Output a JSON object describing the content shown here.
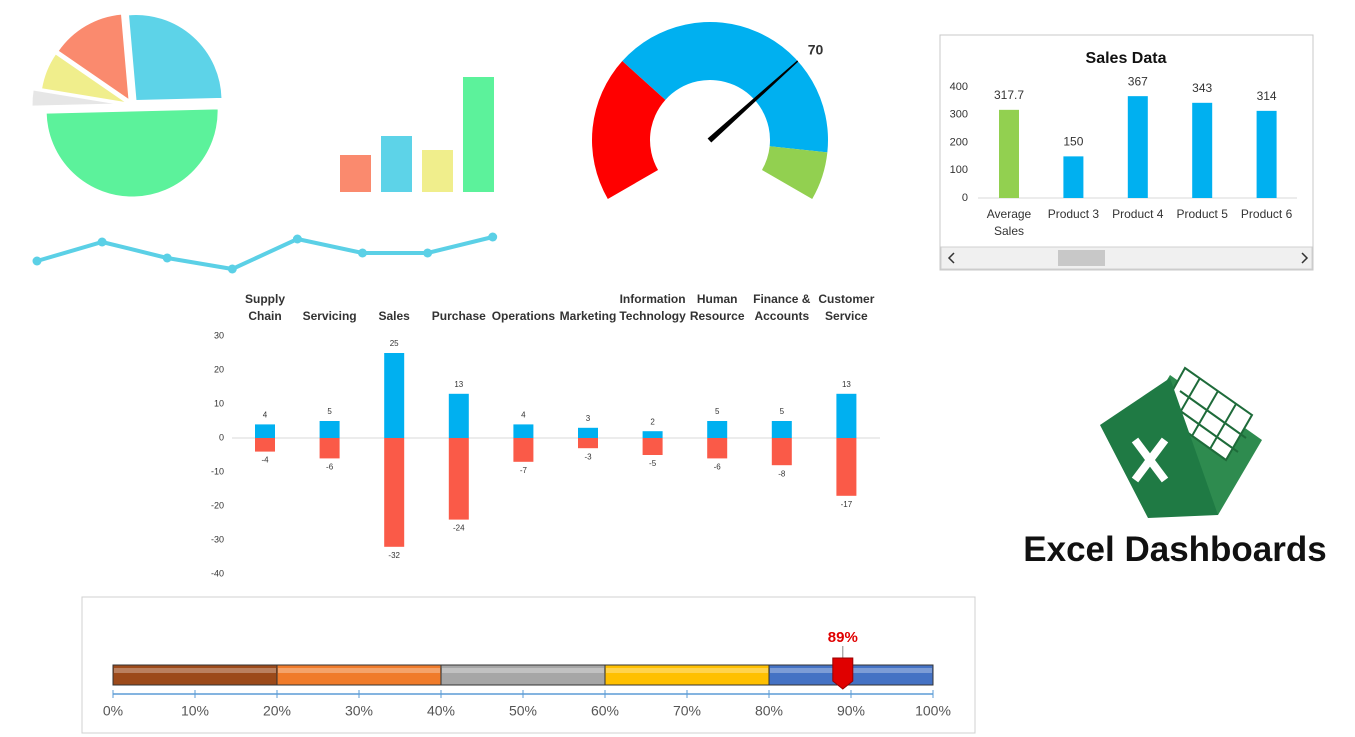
{
  "header": {
    "title": "Excel Dashboards"
  },
  "chart_data": [
    {
      "type": "pie",
      "values": [
        26,
        50,
        3,
        7,
        14
      ],
      "colors": [
        "#5dd3e8",
        "#5cf29b",
        "#e6e6e6",
        "#f0ee8c",
        "#fa8a6e"
      ]
    },
    {
      "type": "bar",
      "values": [
        37,
        56,
        42,
        115
      ],
      "colors": [
        "#fa8a6e",
        "#5dd3e8",
        "#f0ee8c",
        "#5cf29b"
      ],
      "ylim": [
        0,
        120
      ]
    },
    {
      "type": "line",
      "values": [
        11,
        30,
        14,
        3,
        33,
        19,
        19,
        35
      ],
      "color": "#5bd0e6",
      "ylim": [
        0,
        40
      ]
    },
    {
      "type": "gauge",
      "value": 70,
      "lim": [
        0,
        100
      ],
      "segments": [
        {
          "color": "#ff0000",
          "value": 30
        },
        {
          "color": "#00b0f0",
          "value": 60
        },
        {
          "color": "#92d050",
          "value": 10
        }
      ]
    },
    {
      "type": "bar",
      "title": "Sales Data",
      "categories": [
        "Average Sales",
        "Product 3",
        "Product 4",
        "Product 5",
        "Product 6"
      ],
      "values": [
        317.7,
        150,
        367,
        343,
        314
      ],
      "colors": [
        "#92d050",
        "#00b0f0",
        "#00b0f0",
        "#00b0f0",
        "#00b0f0"
      ],
      "ylim": [
        0,
        400
      ],
      "yticks": [
        0,
        100,
        200,
        300,
        400
      ]
    },
    {
      "type": "diverging-bar",
      "categories": [
        "Supply Chain",
        "Servicing",
        "Sales",
        "Purchase",
        "Operations",
        "Marketing",
        "Information Technology",
        "Human Resource",
        "Finance & Accounts",
        "Customer Service"
      ],
      "series": [
        {
          "color": "#00b0f0",
          "values": [
            4,
            5,
            25,
            13,
            4,
            3,
            2,
            5,
            5,
            13
          ]
        },
        {
          "color": "#fa5a48",
          "values": [
            -4,
            -6,
            -32,
            -24,
            -7,
            -3,
            -5,
            -6,
            -8,
            -17
          ]
        }
      ],
      "ylim": [
        -40,
        30
      ],
      "yticks": [
        30,
        20,
        10,
        0,
        -10,
        -20,
        -30,
        -40
      ]
    },
    {
      "type": "progress",
      "values": [
        89
      ],
      "value_labels": [
        "89%"
      ],
      "xlim": [
        0,
        100
      ],
      "segments": [
        {
          "color": "#9c4a1a",
          "value": 20
        },
        {
          "color": "#f07b2a",
          "value": 20
        },
        {
          "color": "#a6a6a6",
          "value": 20
        },
        {
          "color": "#ffc000",
          "value": 20
        },
        {
          "color": "#4472c4",
          "value": 20
        }
      ],
      "xticks": [
        {
          "value": 0,
          "label": "0%"
        },
        {
          "value": 10,
          "label": "10%"
        },
        {
          "value": 20,
          "label": "20%"
        },
        {
          "value": 30,
          "label": "30%"
        },
        {
          "value": 40,
          "label": "40%"
        },
        {
          "value": 50,
          "label": "50%"
        },
        {
          "value": 60,
          "label": "60%"
        },
        {
          "value": 70,
          "label": "70%"
        },
        {
          "value": 80,
          "label": "80%"
        },
        {
          "value": 90,
          "label": "90%"
        },
        {
          "value": 100,
          "label": "100%"
        }
      ]
    }
  ]
}
